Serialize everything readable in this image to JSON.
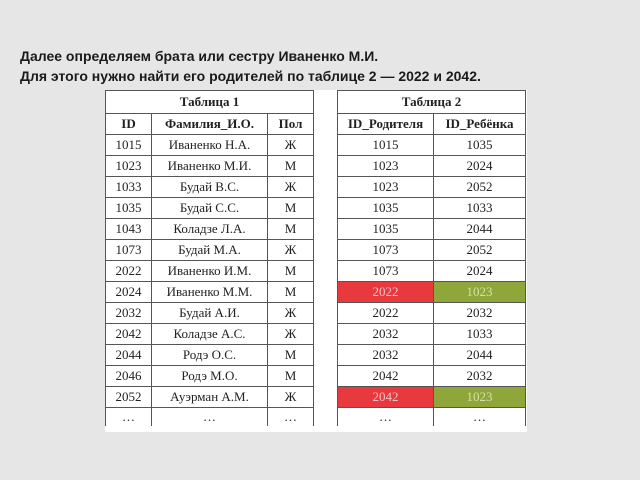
{
  "heading": {
    "line1": "Далее определяем брата или сестру Иваненко М.И.",
    "line2": "Для этого нужно найти его родителей по таблице 2 — 2022 и 2042."
  },
  "table1": {
    "caption": "Таблица 1",
    "headers": [
      "ID",
      "Фамилия_И.О.",
      "Пол"
    ],
    "rows": [
      [
        "1015",
        "Иваненко Н.А.",
        "Ж"
      ],
      [
        "1023",
        "Иваненко М.И.",
        "М"
      ],
      [
        "1033",
        "Будай В.С.",
        "Ж"
      ],
      [
        "1035",
        "Будай С.С.",
        "М"
      ],
      [
        "1043",
        "Коладзе Л.А.",
        "М"
      ],
      [
        "1073",
        "Будай М.А.",
        "Ж"
      ],
      [
        "2022",
        "Иваненко И.М.",
        "М"
      ],
      [
        "2024",
        "Иваненко М.М.",
        "М"
      ],
      [
        "2032",
        "Будай А.И.",
        "Ж"
      ],
      [
        "2042",
        "Коладзе А.С.",
        "Ж"
      ],
      [
        "2044",
        "Родэ О.С.",
        "М"
      ],
      [
        "2046",
        "Родэ М.О.",
        "М"
      ],
      [
        "2052",
        "Ауэрман А.М.",
        "Ж"
      ],
      [
        "…",
        "…",
        "…"
      ]
    ]
  },
  "table2": {
    "caption": "Таблица 2",
    "headers": [
      "ID_Родителя",
      "ID_Ребёнка"
    ],
    "rows": [
      [
        "1015",
        "1035"
      ],
      [
        "1023",
        "2024"
      ],
      [
        "1023",
        "2052"
      ],
      [
        "1035",
        "1033"
      ],
      [
        "1035",
        "2044"
      ],
      [
        "1073",
        "2052"
      ],
      [
        "1073",
        "2024"
      ],
      [
        "2022",
        "1023"
      ],
      [
        "2022",
        "2032"
      ],
      [
        "2032",
        "1033"
      ],
      [
        "2032",
        "2044"
      ],
      [
        "2042",
        "2032"
      ],
      [
        "2042",
        "1023"
      ],
      [
        "…",
        "…"
      ]
    ],
    "highlight_colors": {
      "parent": "#e8393f",
      "child": "#8fa63a"
    }
  }
}
